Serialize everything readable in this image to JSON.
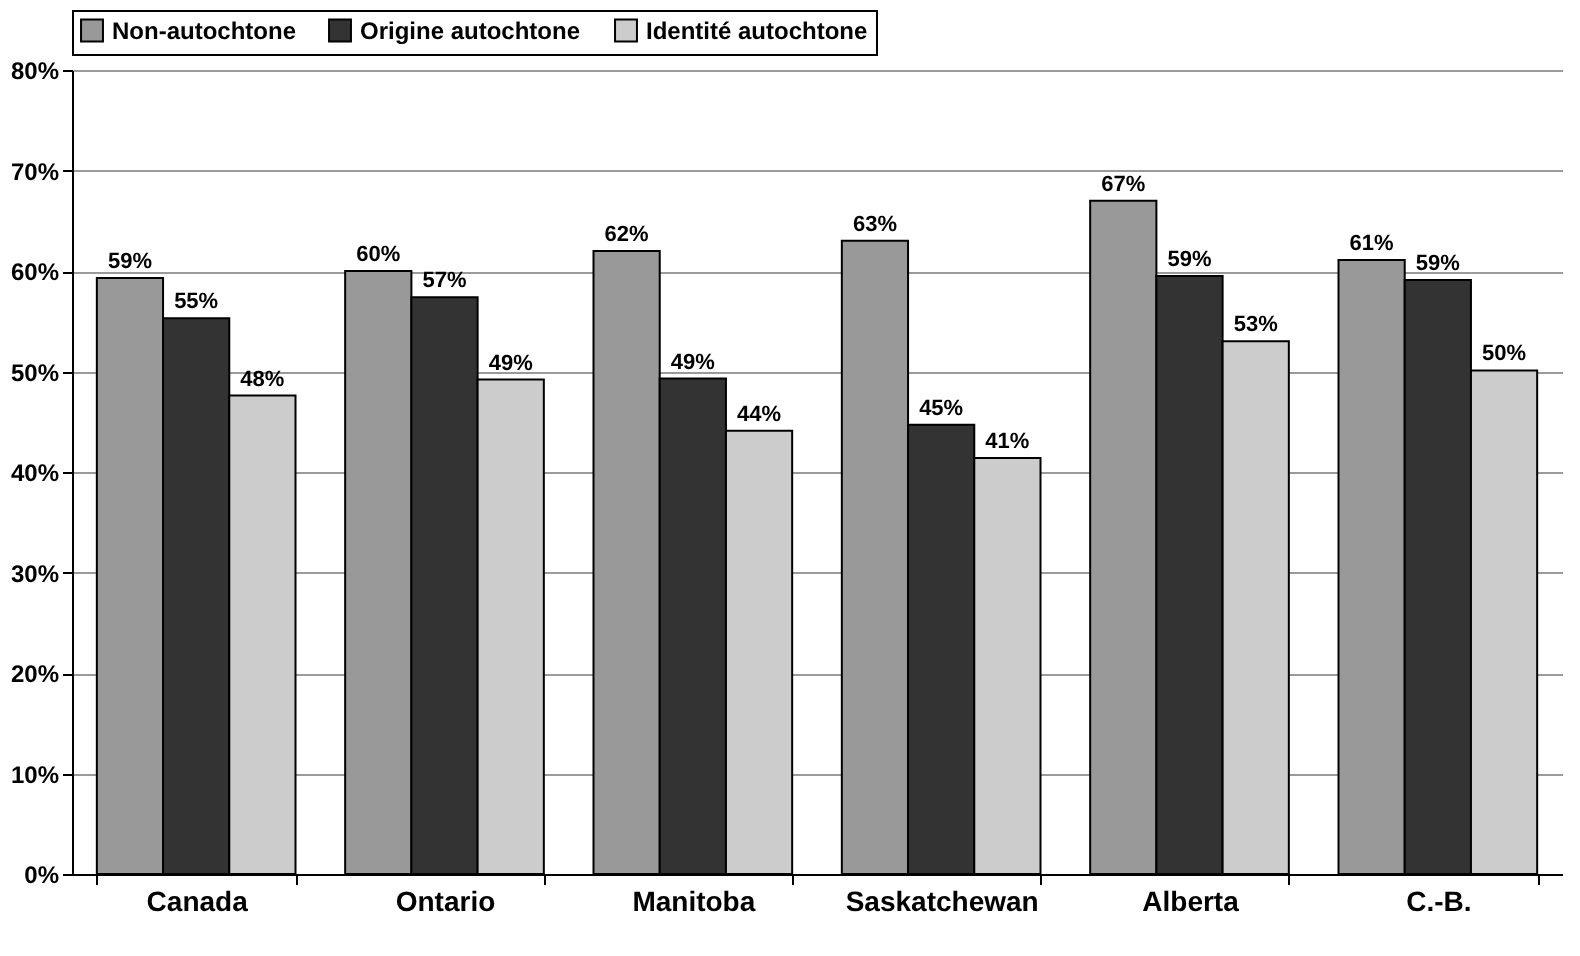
{
  "chart_data": {
    "type": "bar",
    "categories": [
      "Canada",
      "Ontario",
      "Manitoba",
      "Saskatchewan",
      "Alberta",
      "C.-B."
    ],
    "series": [
      {
        "name": "Non-autochtone",
        "color": "#999999",
        "values": [
          59.3,
          60,
          62,
          63,
          67,
          61.1
        ],
        "value_labels": [
          "59%",
          "60%",
          "62%",
          "63%",
          "67%",
          "61%"
        ]
      },
      {
        "name": "Origine autochtone",
        "color": "#333333",
        "values": [
          55.3,
          57.4,
          49.3,
          44.7,
          59.5,
          59.1
        ],
        "value_labels": [
          "55%",
          "57%",
          "49%",
          "45%",
          "59%",
          "59%"
        ]
      },
      {
        "name": "Identité autochtone",
        "color": "#cccccc",
        "values": [
          47.6,
          49.2,
          44.1,
          41.4,
          53,
          50.1
        ],
        "value_labels": [
          "48%",
          "49%",
          "44%",
          "41%",
          "53%",
          "50%"
        ]
      }
    ],
    "ylim": [
      0,
      80
    ],
    "yticks": [
      {
        "value": 0,
        "label": "0%"
      },
      {
        "value": 10,
        "label": "10%"
      },
      {
        "value": 20,
        "label": "20%"
      },
      {
        "value": 30,
        "label": "30%"
      },
      {
        "value": 40,
        "label": "40%"
      },
      {
        "value": 50,
        "label": "50%"
      },
      {
        "value": 60,
        "label": "60%"
      },
      {
        "value": 70,
        "label": "70%"
      },
      {
        "value": 80,
        "label": "80%"
      }
    ],
    "grid": "y",
    "legend": "top"
  }
}
